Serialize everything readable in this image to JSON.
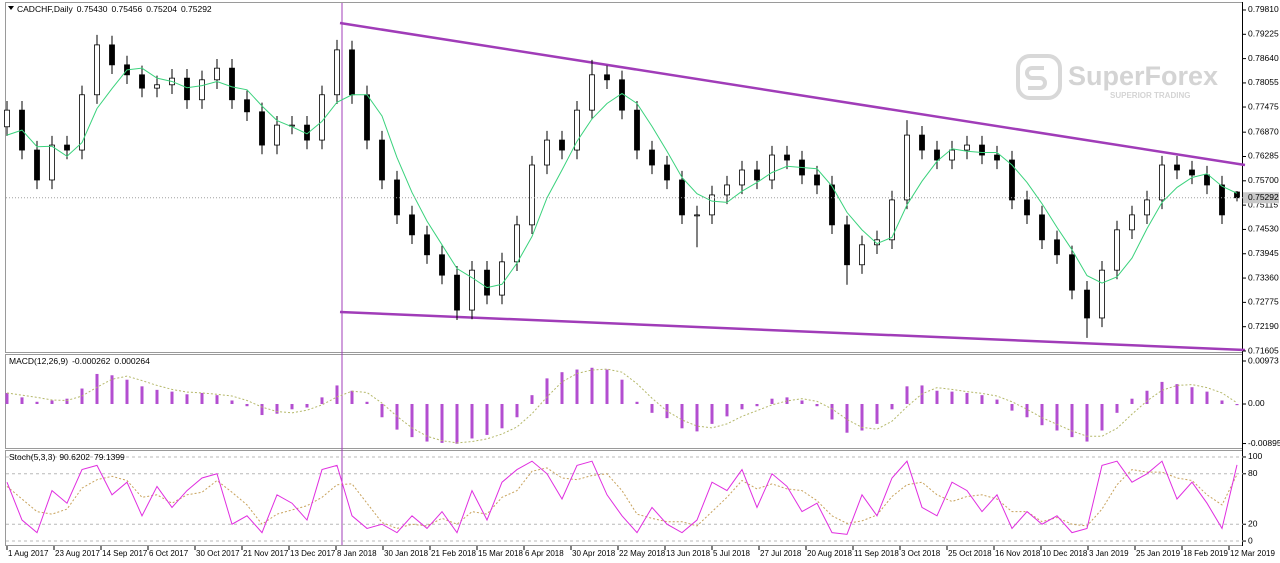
{
  "watermark": {
    "brand": "SuperForex",
    "tagline": "SUPERIOR TRADING"
  },
  "time_axis": [
    "1 Aug 2017",
    "23 Aug 2017",
    "14 Sep 2017",
    "6 Oct 2017",
    "30 Oct 2017",
    "21 Nov 2017",
    "13 Dec 2017",
    "8 Jan 2018",
    "30 Jan 2018",
    "21 Feb 2018",
    "15 Mar 2018",
    "6 Apr 2018",
    "30 Apr 2018",
    "22 May 2018",
    "13 Jun 2018",
    "5 Jul 2018",
    "27 Jul 2018",
    "20 Aug 2018",
    "11 Sep 2018",
    "3 Oct 2018",
    "25 Oct 2018",
    "16 Nov 2018",
    "10 Dec 2018",
    "3 Jan 2019",
    "25 Jan 2019",
    "18 Feb 2019",
    "12 Mar 2019"
  ],
  "chart_data": [
    {
      "type": "candlestick",
      "title": "CADCHF,Daily",
      "last_bar_labels": [
        "0.75430",
        "0.75456",
        "0.75204",
        "0.75292"
      ],
      "up_color": "#ffffff",
      "down_color": "#000000",
      "open": [
        0.77,
        0.774,
        0.7644,
        0.7572,
        0.7656,
        0.7644,
        0.7777,
        0.7897,
        0.7849,
        0.7825,
        0.7793,
        0.7801,
        0.7817,
        0.7765,
        0.7813,
        0.7841,
        0.7765,
        0.7736,
        0.7656,
        0.7704,
        0.7704,
        0.7668,
        0.7777,
        0.7885,
        0.7777,
        0.7668,
        0.7572,
        0.7488,
        0.744,
        0.7392,
        0.7343,
        0.7259,
        0.7355,
        0.7295,
        0.7375,
        0.7464,
        0.7608,
        0.7668,
        0.7644,
        0.774,
        0.7825,
        0.7813,
        0.774,
        0.7644,
        0.7608,
        0.7572,
        0.7488,
        0.7488,
        0.7536,
        0.756,
        0.7596,
        0.7572,
        0.7632,
        0.762,
        0.7584,
        0.756,
        0.7464,
        0.7368,
        0.7416,
        0.7428,
        0.7524,
        0.768,
        0.7644,
        0.762,
        0.7644,
        0.7656,
        0.7632,
        0.762,
        0.7524,
        0.7488,
        0.7428,
        0.7392,
        0.7307,
        0.724,
        0.7355,
        0.7452,
        0.7488,
        0.7524,
        0.7608,
        0.7596,
        0.7584,
        0.756,
        0.7543
      ],
      "high": [
        0.7762,
        0.7762,
        0.7666,
        0.7678,
        0.7678,
        0.7799,
        0.7921,
        0.7919,
        0.7871,
        0.7847,
        0.7823,
        0.7839,
        0.7839,
        0.7835,
        0.7863,
        0.7863,
        0.7787,
        0.7758,
        0.7726,
        0.7726,
        0.7726,
        0.7799,
        0.7909,
        0.7907,
        0.7799,
        0.769,
        0.7594,
        0.751,
        0.7462,
        0.7414,
        0.7365,
        0.7377,
        0.7377,
        0.7397,
        0.7486,
        0.763,
        0.769,
        0.769,
        0.7762,
        0.7861,
        0.7847,
        0.7835,
        0.7762,
        0.7666,
        0.763,
        0.7594,
        0.751,
        0.7558,
        0.7582,
        0.7618,
        0.7618,
        0.7654,
        0.7654,
        0.7642,
        0.7606,
        0.7582,
        0.7486,
        0.7438,
        0.745,
        0.7546,
        0.7716,
        0.7702,
        0.7666,
        0.7666,
        0.7678,
        0.7678,
        0.7654,
        0.7642,
        0.7546,
        0.751,
        0.745,
        0.7414,
        0.7329,
        0.7377,
        0.7474,
        0.751,
        0.7546,
        0.763,
        0.763,
        0.7618,
        0.7606,
        0.7582,
        0.75456
      ],
      "low": [
        0.7678,
        0.7622,
        0.755,
        0.755,
        0.7622,
        0.7622,
        0.7755,
        0.7827,
        0.7803,
        0.7771,
        0.7771,
        0.7779,
        0.7743,
        0.7743,
        0.7791,
        0.7743,
        0.7714,
        0.7634,
        0.7634,
        0.7682,
        0.7646,
        0.7646,
        0.7755,
        0.7755,
        0.7646,
        0.755,
        0.7466,
        0.7418,
        0.737,
        0.7321,
        0.7235,
        0.7237,
        0.7273,
        0.7273,
        0.7353,
        0.7442,
        0.7586,
        0.7622,
        0.7622,
        0.7718,
        0.7791,
        0.7718,
        0.7622,
        0.7586,
        0.755,
        0.7466,
        0.741,
        0.7466,
        0.7514,
        0.7538,
        0.755,
        0.755,
        0.7598,
        0.7562,
        0.7538,
        0.7442,
        0.732,
        0.7346,
        0.7394,
        0.7406,
        0.7502,
        0.7622,
        0.7598,
        0.7598,
        0.7622,
        0.761,
        0.7598,
        0.7502,
        0.7466,
        0.7406,
        0.737,
        0.7285,
        0.7192,
        0.7218,
        0.7333,
        0.743,
        0.7466,
        0.7502,
        0.7574,
        0.7562,
        0.7538,
        0.7466,
        0.75204
      ],
      "close": [
        0.774,
        0.7644,
        0.7572,
        0.7656,
        0.7644,
        0.7777,
        0.7897,
        0.7849,
        0.7825,
        0.7793,
        0.7801,
        0.7817,
        0.7765,
        0.7813,
        0.7841,
        0.7765,
        0.7736,
        0.7656,
        0.7704,
        0.7704,
        0.7668,
        0.7777,
        0.7885,
        0.7777,
        0.7668,
        0.7572,
        0.7488,
        0.744,
        0.7392,
        0.7343,
        0.7259,
        0.7355,
        0.7295,
        0.7375,
        0.7464,
        0.7608,
        0.7668,
        0.7644,
        0.774,
        0.7825,
        0.7813,
        0.774,
        0.7644,
        0.7608,
        0.7572,
        0.7488,
        0.7488,
        0.7536,
        0.756,
        0.7596,
        0.7572,
        0.7632,
        0.762,
        0.7584,
        0.756,
        0.7464,
        0.7368,
        0.7416,
        0.7428,
        0.7524,
        0.768,
        0.7644,
        0.762,
        0.7644,
        0.7656,
        0.7632,
        0.762,
        0.7524,
        0.7488,
        0.7428,
        0.7392,
        0.7307,
        0.724,
        0.7355,
        0.7452,
        0.7488,
        0.7524,
        0.7608,
        0.7596,
        0.7584,
        0.756,
        0.7488,
        0.75292
      ],
      "overlay": {
        "color": "#3ad27c",
        "values": [
          0.768,
          0.7692,
          0.7652,
          0.7653,
          0.7629,
          0.7662,
          0.7744,
          0.7792,
          0.7837,
          0.7841,
          0.7817,
          0.7809,
          0.7794,
          0.7799,
          0.7809,
          0.7796,
          0.7789,
          0.775,
          0.7715,
          0.77,
          0.7683,
          0.7713,
          0.7759,
          0.7777,
          0.7777,
          0.7726,
          0.7626,
          0.7542,
          0.7473,
          0.7416,
          0.7359,
          0.7337,
          0.7313,
          0.7321,
          0.7372,
          0.7436,
          0.7529,
          0.7596,
          0.7665,
          0.7719,
          0.7756,
          0.778,
          0.7756,
          0.7701,
          0.7641,
          0.7578,
          0.7539,
          0.7521,
          0.7518,
          0.7545,
          0.7566,
          0.759,
          0.7605,
          0.7602,
          0.7599,
          0.7557,
          0.7494,
          0.7452,
          0.7419,
          0.7434,
          0.7512,
          0.7569,
          0.7617,
          0.7647,
          0.7641,
          0.7638,
          0.7638,
          0.7608,
          0.7566,
          0.7515,
          0.7458,
          0.7404,
          0.7342,
          0.7324,
          0.7339,
          0.7384,
          0.7455,
          0.7518,
          0.7554,
          0.7578,
          0.7587,
          0.7557,
          0.754
        ]
      },
      "ylim": [
        0.71581,
        0.79978
      ],
      "yticks": [
        {
          "value": 0.7981,
          "label": "0.79810"
        },
        0.79225,
        {
          "value": 0.7864,
          "label": "0.78640"
        },
        0.78055,
        0.77475,
        {
          "value": 0.7687,
          "label": "0.76870"
        },
        0.76285,
        {
          "value": 0.757,
          "label": "0.75700"
        },
        0.75115,
        {
          "value": 0.7453,
          "label": "0.74530"
        },
        0.73945,
        {
          "value": 0.7336,
          "label": "0.73360"
        },
        0.72775,
        {
          "value": 0.7219,
          "label": "0.72190"
        },
        0.71605
      ],
      "grid": false
    },
    {
      "type": "macd",
      "title": "MACD(12,26,9)",
      "histogram": {
        "color": "#b34ed0",
        "values": [
          0.0025,
          0.0015,
          0.0005,
          0.0008,
          0.0012,
          0.0035,
          0.0068,
          0.0065,
          0.0055,
          0.004,
          0.0032,
          0.0028,
          0.0022,
          0.0025,
          0.002,
          0.0008,
          -0.0005,
          -0.0025,
          -0.0022,
          -0.0012,
          -0.0008,
          0.0015,
          0.0042,
          0.003,
          0.0005,
          -0.003,
          -0.0058,
          -0.0075,
          -0.0085,
          -0.0088,
          -0.009,
          -0.0078,
          -0.007,
          -0.0055,
          -0.003,
          0.002,
          0.0058,
          0.0072,
          0.0078,
          0.0082,
          0.0078,
          0.0055,
          0.0005,
          -0.002,
          -0.0032,
          -0.0055,
          -0.0062,
          -0.0045,
          -0.0028,
          -0.0012,
          -0.0005,
          0.0012,
          0.0015,
          0.0008,
          -0.0005,
          -0.0035,
          -0.0065,
          -0.006,
          -0.0045,
          -0.0012,
          0.004,
          0.0042,
          0.003,
          0.0028,
          0.0025,
          0.002,
          0.001,
          -0.0015,
          -0.003,
          -0.0048,
          -0.006,
          -0.0075,
          -0.0085,
          -0.006,
          -0.002,
          0.0012,
          0.003,
          0.005,
          0.0045,
          0.0038,
          0.0028,
          0.0008,
          -0.000262
        ]
      },
      "signal": {
        "color": "#b5b86a",
        "values": [
          0.0025,
          0.002,
          0.0015,
          0.0009,
          0.0008,
          0.0018,
          0.0038,
          0.0056,
          0.0063,
          0.0053,
          0.0042,
          0.0033,
          0.0027,
          0.0025,
          0.0022,
          0.0018,
          0.0008,
          -0.0007,
          -0.0017,
          -0.002,
          -0.0014,
          -0.0002,
          0.0016,
          0.0029,
          0.0026,
          0.0002,
          -0.0028,
          -0.0054,
          -0.0073,
          -0.0083,
          -0.0088,
          -0.0085,
          -0.0079,
          -0.0068,
          -0.0052,
          -0.0022,
          0.0016,
          0.005,
          0.0069,
          0.0077,
          0.0079,
          0.0072,
          0.0046,
          0.0013,
          -0.0016,
          -0.0036,
          -0.005,
          -0.0054,
          -0.0045,
          -0.0028,
          -0.0015,
          -0.0002,
          0.0007,
          0.0012,
          0.0006,
          -0.0011,
          -0.0035,
          -0.0053,
          -0.0057,
          -0.0039,
          -0.0006,
          0.0023,
          0.0037,
          0.0033,
          0.0028,
          0.0024,
          0.0018,
          0.0005,
          -0.0012,
          -0.0031,
          -0.0046,
          -0.0061,
          -0.0073,
          -0.0073,
          -0.0055,
          -0.0023,
          0.0007,
          0.0031,
          0.0042,
          0.0044,
          0.0037,
          0.0025,
          0.000264
        ]
      },
      "ylim": [
        -0.00996,
        0.01109
      ],
      "yticks": [
        0.00973,
        {
          "value": 0,
          "label": "0.00"
        },
        -0.00895
      ],
      "grid": false
    },
    {
      "type": "stochastic",
      "title": "Stoch(5,3,3)",
      "main": {
        "color": "#e02ee0",
        "values": [
          70,
          25,
          10,
          60,
          45,
          85,
          90,
          55,
          70,
          30,
          65,
          40,
          60,
          75,
          80,
          20,
          30,
          10,
          55,
          45,
          25,
          85,
          90,
          30,
          15,
          20,
          10,
          30,
          15,
          35,
          10,
          60,
          25,
          70,
          85,
          95,
          80,
          50,
          90,
          95,
          55,
          30,
          10,
          40,
          20,
          10,
          25,
          70,
          60,
          85,
          40,
          80,
          65,
          35,
          45,
          10,
          8,
          55,
          30,
          75,
          95,
          40,
          30,
          70,
          60,
          35,
          55,
          15,
          35,
          20,
          30,
          10,
          15,
          90,
          95,
          70,
          80,
          95,
          50,
          70,
          45,
          15,
          90.6202
        ]
      },
      "signal": {
        "color": "#c8a25c",
        "values": [
          65,
          50,
          35,
          32,
          38,
          63,
          73,
          77,
          72,
          52,
          55,
          45,
          55,
          58,
          72,
          58,
          43,
          20,
          32,
          37,
          42,
          52,
          67,
          68,
          45,
          22,
          15,
          20,
          18,
          27,
          20,
          35,
          32,
          52,
          60,
          83,
          87,
          75,
          73,
          78,
          80,
          60,
          32,
          27,
          23,
          23,
          18,
          35,
          52,
          72,
          62,
          68,
          62,
          60,
          48,
          30,
          21,
          24,
          31,
          53,
          67,
          70,
          55,
          47,
          53,
          55,
          50,
          35,
          35,
          23,
          28,
          20,
          18,
          38,
          67,
          85,
          82,
          82,
          75,
          72,
          55,
          43,
          79.1399
        ]
      },
      "ylim": [
        -4.7,
        107.1
      ],
      "yticks": [
        100,
        80,
        20,
        0
      ],
      "grid": true
    }
  ]
}
